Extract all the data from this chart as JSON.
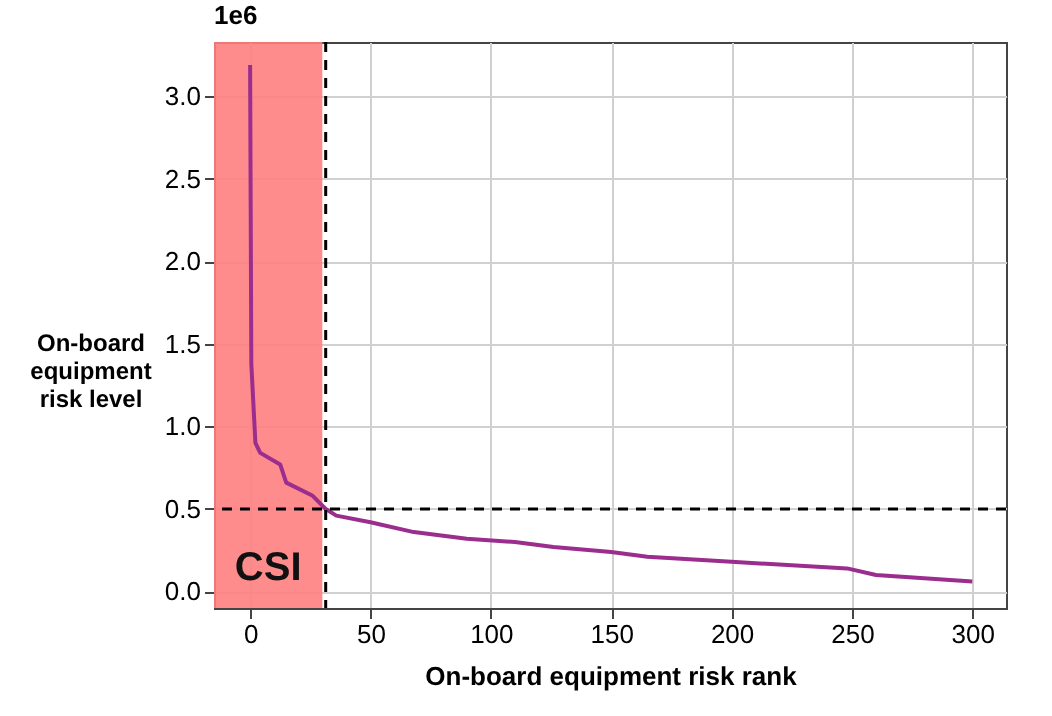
{
  "chart_data": {
    "type": "line",
    "xlabel": "On-board equipment risk rank",
    "ylabel": "On-board equipment risk level",
    "annotations": [
      "1e6"
    ],
    "x": [
      0,
      0.5,
      2.2,
      4.2,
      12.5,
      15,
      26,
      31.4,
      35.8,
      50,
      68,
      90,
      110,
      126,
      150,
      165,
      200,
      248,
      260,
      300
    ],
    "series": [
      {
        "color": "#9b2d8e",
        "values": [
          3.19,
          1.38,
          0.9,
          0.84,
          0.77,
          0.66,
          0.58,
          0.5,
          0.46,
          0.42,
          0.36,
          0.32,
          0.3,
          0.27,
          0.24,
          0.21,
          0.18,
          0.14,
          0.1,
          0.06
        ]
      }
    ],
    "xlim": [
      -15,
      314
    ],
    "ylim": [
      -0.1,
      3.33
    ],
    "xticks": [
      0,
      50,
      100,
      150,
      200,
      250,
      300
    ],
    "yticks": [
      {
        "value": 0,
        "label": "0.0"
      },
      {
        "value": 0.5,
        "label": "0.5"
      },
      {
        "value": 1,
        "label": "1.0"
      },
      {
        "value": 1.5,
        "label": "1.5"
      },
      {
        "value": 2,
        "label": "2.0"
      },
      {
        "value": 2.5,
        "label": "2.5"
      },
      {
        "value": 3,
        "label": "3.0"
      }
    ],
    "ref_lines": [
      {
        "axis": "x",
        "value": 31.4,
        "line_style": "dashed",
        "color": "#000000"
      },
      {
        "axis": "y",
        "value": 0.5,
        "line_style": "dashed",
        "color": "#000000"
      }
    ],
    "bands": [
      {
        "axis": "x",
        "from": -15,
        "to": 30,
        "label": "CSI",
        "color": "#ff8080"
      }
    ],
    "grid": true,
    "marker": "none",
    "line_style": "solid"
  }
}
